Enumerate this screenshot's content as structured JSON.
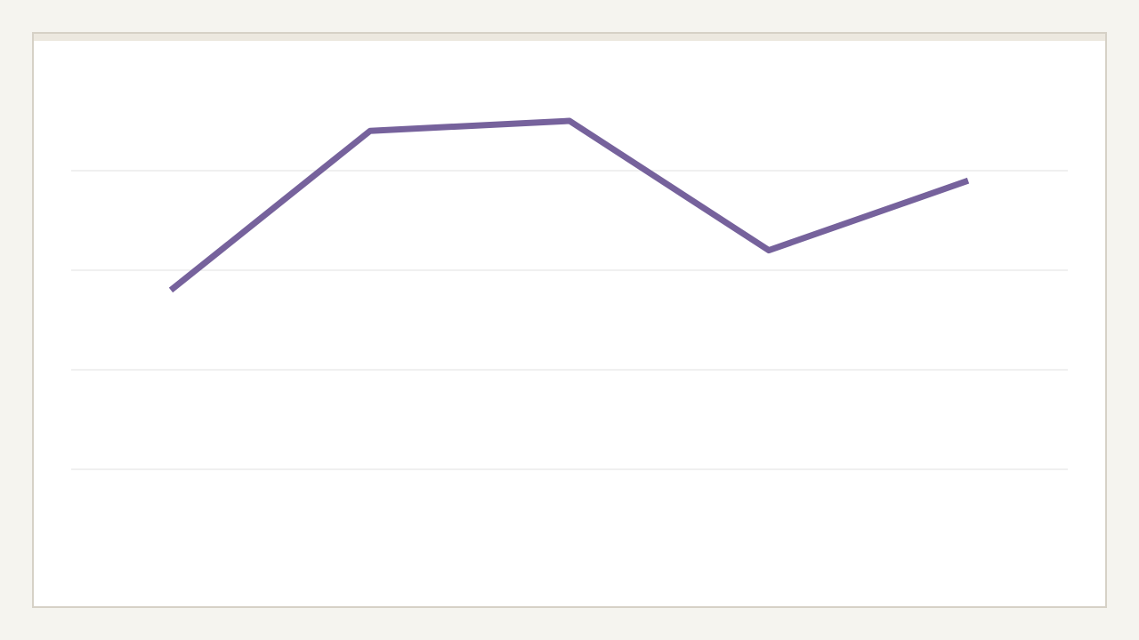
{
  "chart_data": {
    "type": "line",
    "categories": [
      null,
      null,
      null,
      null,
      null
    ],
    "values": [
      2.8,
      4.4,
      4.5,
      3.2,
      3.9
    ],
    "color": "#76629c",
    "ylim": [
      0,
      5
    ],
    "yticks": [
      1,
      2,
      3,
      4
    ],
    "grid": true
  }
}
